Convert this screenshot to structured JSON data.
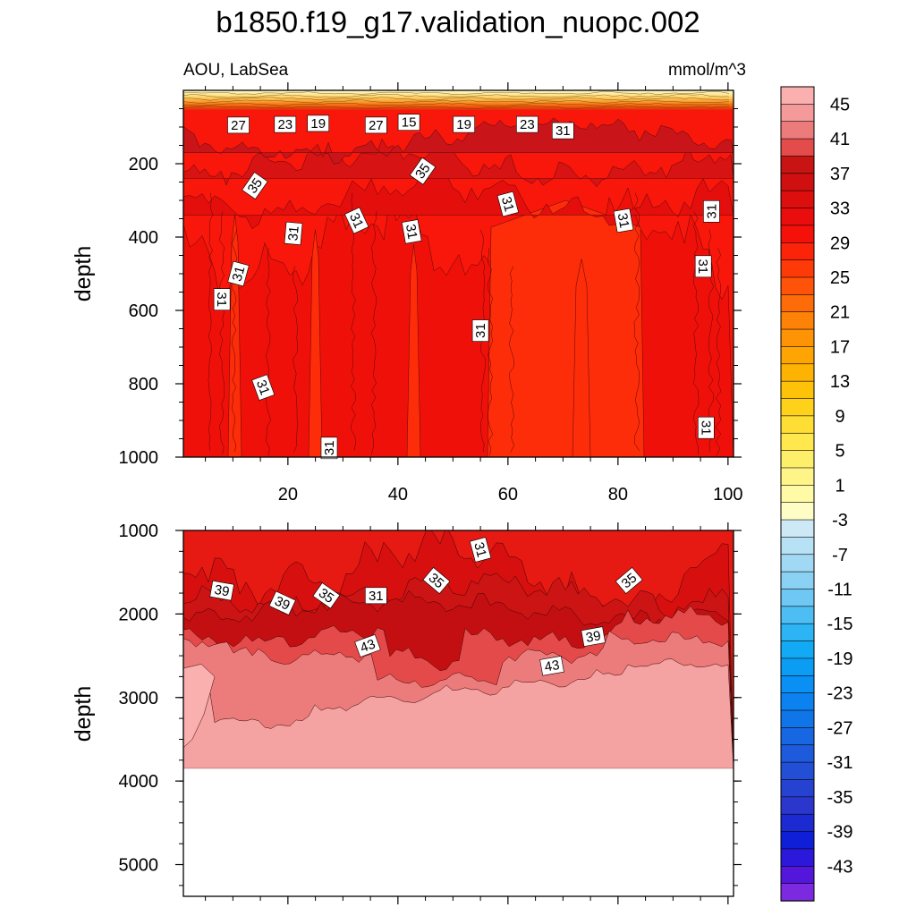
{
  "chart_data": {
    "type": "heatmap",
    "title": "b1850.f19_g17.validation_nuopc.002",
    "subtitle_left": "AOU, LabSea",
    "subtitle_right": "mmol/m^3",
    "panels": [
      {
        "name": "upper",
        "ylabel": "depth",
        "xlim": [
          1,
          101
        ],
        "ylim": [
          1000,
          0
        ],
        "xticks": [
          20,
          40,
          60,
          80,
          100
        ],
        "xtick_labels": [
          "20",
          "40",
          "60",
          "80",
          "100"
        ],
        "yticks": [
          200,
          400,
          600,
          800,
          1000
        ],
        "ytick_labels": [
          "200",
          "400",
          "600",
          "800",
          "1000"
        ],
        "contour_labels": [
          {
            "text": "27",
            "x": 11,
            "y": 95,
            "angle": 0
          },
          {
            "text": "23",
            "x": 19.5,
            "y": 93,
            "angle": 0
          },
          {
            "text": "19",
            "x": 25.5,
            "y": 90,
            "angle": 0
          },
          {
            "text": "27",
            "x": 36,
            "y": 95,
            "angle": 0
          },
          {
            "text": "15",
            "x": 42,
            "y": 87,
            "angle": 0
          },
          {
            "text": "19",
            "x": 52,
            "y": 93,
            "angle": 0
          },
          {
            "text": "23",
            "x": 63.5,
            "y": 93,
            "angle": 0
          },
          {
            "text": "31",
            "x": 70,
            "y": 110,
            "angle": 0
          },
          {
            "text": "35",
            "x": 44.5,
            "y": 220,
            "angle": -55
          },
          {
            "text": "35",
            "x": 14,
            "y": 260,
            "angle": -55
          },
          {
            "text": "31",
            "x": 60,
            "y": 310,
            "angle": 75
          },
          {
            "text": "31",
            "x": 32.5,
            "y": 355,
            "angle": 65
          },
          {
            "text": "31",
            "x": 81,
            "y": 355,
            "angle": 80
          },
          {
            "text": "31",
            "x": 97,
            "y": 330,
            "angle": -90
          },
          {
            "text": "31",
            "x": 21,
            "y": 390,
            "angle": -85
          },
          {
            "text": "31",
            "x": 42.5,
            "y": 385,
            "angle": 80
          },
          {
            "text": "31",
            "x": 11,
            "y": 500,
            "angle": -75
          },
          {
            "text": "31",
            "x": 95.5,
            "y": 480,
            "angle": 90
          },
          {
            "text": "31",
            "x": 8,
            "y": 570,
            "angle": 90
          },
          {
            "text": "31",
            "x": 55,
            "y": 655,
            "angle": -90
          },
          {
            "text": "31",
            "x": 15.5,
            "y": 810,
            "angle": 70
          },
          {
            "text": "31",
            "x": 96,
            "y": 920,
            "angle": 90
          },
          {
            "text": "31",
            "x": 27.5,
            "y": 975,
            "angle": -90
          }
        ]
      },
      {
        "name": "lower",
        "ylabel": "depth",
        "xlim": [
          1,
          101
        ],
        "ylim": [
          5380,
          1000
        ],
        "yticks": [
          1000,
          2000,
          3000,
          4000,
          5000
        ],
        "ytick_labels": [
          "1000",
          "2000",
          "3000",
          "4000",
          "5000"
        ],
        "data_bottom_depth": 3850,
        "contour_labels": [
          {
            "text": "31",
            "x": 55,
            "y": 1230,
            "angle": 75
          },
          {
            "text": "39",
            "x": 8,
            "y": 1720,
            "angle": 10
          },
          {
            "text": "39",
            "x": 19,
            "y": 1870,
            "angle": 25
          },
          {
            "text": "35",
            "x": 27,
            "y": 1780,
            "angle": 35
          },
          {
            "text": "31",
            "x": 36,
            "y": 1780,
            "angle": 0
          },
          {
            "text": "35",
            "x": 47,
            "y": 1600,
            "angle": 40
          },
          {
            "text": "35",
            "x": 82,
            "y": 1600,
            "angle": -40
          },
          {
            "text": "43",
            "x": 34.5,
            "y": 2380,
            "angle": -20
          },
          {
            "text": "39",
            "x": 75.5,
            "y": 2270,
            "angle": -10
          },
          {
            "text": "43",
            "x": 68,
            "y": 2620,
            "angle": -10
          }
        ]
      }
    ],
    "colorbar": {
      "levels": [
        -47,
        -45,
        -43,
        -41,
        -39,
        -37,
        -35,
        -33,
        -31,
        -29,
        -27,
        -25,
        -23,
        -21,
        -19,
        -17,
        -15,
        -13,
        -11,
        -9,
        -7,
        -5,
        -3,
        -1,
        1,
        3,
        5,
        7,
        9,
        11,
        13,
        15,
        17,
        19,
        21,
        23,
        25,
        27,
        29,
        31,
        33,
        35,
        37,
        39,
        41,
        43,
        45,
        47
      ],
      "labels": [
        "45",
        "41",
        "37",
        "33",
        "29",
        "25",
        "21",
        "17",
        "13",
        "9",
        "5",
        "1",
        "-3",
        "-7",
        "-11",
        "-15",
        "-19",
        "-23",
        "-27",
        "-31",
        "-35",
        "-39",
        "-43"
      ]
    }
  },
  "colors": {
    "cb_top_to_bottom": [
      "#fbb0b0",
      "#f49a9a",
      "#ec7c7c",
      "#e44b4b",
      "#c91414",
      "#d01010",
      "#dd0e0e",
      "#ea0d0d",
      "#f5110a",
      "#fc2408",
      "#fe3b08",
      "#fe5308",
      "#fe6b09",
      "#fe8207",
      "#fe9305",
      "#fea403",
      "#feb303",
      "#fec309",
      "#fed21a",
      "#fede34",
      "#fee84e",
      "#feef6a",
      "#fef487",
      "#fefaa6",
      "#fffdc6",
      "#cde9f6",
      "#b7e1f4",
      "#a1d9f4",
      "#8bd1f4",
      "#6ec8f3",
      "#4cbef4",
      "#2db4f4",
      "#13aaf5",
      "#0b9df4",
      "#0a8ff4",
      "#0b82ef",
      "#1075e9",
      "#1867e2",
      "#1e5adc",
      "#234ed6",
      "#2642d0",
      "#2a36cc",
      "#1b2ad1",
      "#0f1ed7",
      "#2c18da",
      "#5416db",
      "#7b2ae0"
    ],
    "upper_layers": [
      "#c9141a",
      "#d71313",
      "#e40e0d",
      "#f0100a",
      "#f8170a",
      "#fd2c09"
    ],
    "lower_layers": [
      "#e61a12",
      "#d80f0f",
      "#cc1414",
      "#c40f12",
      "#e44a4a",
      "#ec7c7c",
      "#f4a2a2",
      "#fbb0b0"
    ]
  }
}
